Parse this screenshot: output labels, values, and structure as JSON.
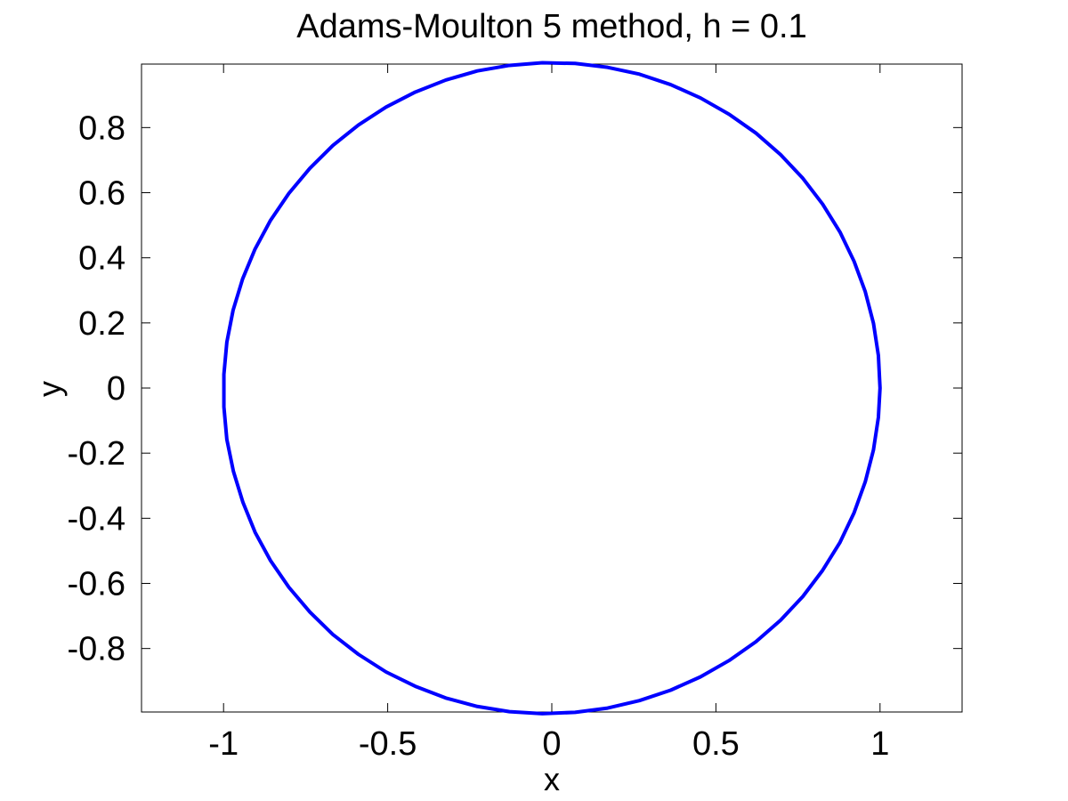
{
  "chart_data": {
    "type": "line",
    "title": "Adams-Moulton 5 method, h = 0.1",
    "xlabel": "x",
    "ylabel": "y",
    "xlim": [
      -1.25,
      1.25
    ],
    "ylim": [
      -0.995,
      0.995
    ],
    "grid": false,
    "x_ticks": [
      {
        "value": -1,
        "label": "-1"
      },
      {
        "value": -0.5,
        "label": "-0.5"
      },
      {
        "value": 0,
        "label": "0"
      },
      {
        "value": 0.5,
        "label": "0.5"
      },
      {
        "value": 1,
        "label": "1"
      }
    ],
    "y_ticks": [
      {
        "value": -0.8,
        "label": "-0.8"
      },
      {
        "value": -0.6,
        "label": "-0.6"
      },
      {
        "value": -0.4,
        "label": "-0.4"
      },
      {
        "value": -0.2,
        "label": "-0.2"
      },
      {
        "value": 0,
        "label": "0"
      },
      {
        "value": 0.2,
        "label": "0.2"
      },
      {
        "value": 0.4,
        "label": "0.4"
      },
      {
        "value": 0.6,
        "label": "0.6"
      },
      {
        "value": 0.8,
        "label": "0.8"
      }
    ],
    "series": [
      {
        "color": "#0000ff",
        "x": [
          1.0,
          0.995,
          0.98,
          0.955,
          0.921,
          0.878,
          0.825,
          0.765,
          0.697,
          0.622,
          0.54,
          0.453,
          0.362,
          0.267,
          0.17,
          0.071,
          -0.029,
          -0.129,
          -0.227,
          -0.323,
          -0.416,
          -0.505,
          -0.589,
          -0.667,
          -0.737,
          -0.801,
          -0.857,
          -0.904,
          -0.942,
          -0.971,
          -0.99,
          -0.999,
          -0.999,
          -0.99,
          -0.97,
          -0.941,
          -0.904,
          -0.857,
          -0.801,
          -0.737,
          -0.667,
          -0.589,
          -0.505,
          -0.416,
          -0.323,
          -0.227,
          -0.129,
          -0.029,
          0.071,
          0.17,
          0.267,
          0.362,
          0.453,
          0.54,
          0.622,
          0.697,
          0.765,
          0.825,
          0.878,
          0.921,
          0.955,
          0.98,
          0.995,
          1.0
        ],
        "y": [
          0.0,
          0.1,
          0.199,
          0.296,
          0.389,
          0.479,
          0.565,
          0.644,
          0.717,
          0.783,
          0.841,
          0.891,
          0.932,
          0.964,
          0.985,
          0.997,
          0.999,
          0.991,
          0.974,
          0.946,
          0.909,
          0.863,
          0.808,
          0.745,
          0.675,
          0.598,
          0.515,
          0.427,
          0.335,
          0.239,
          0.141,
          0.042,
          -0.058,
          -0.158,
          -0.256,
          -0.351,
          -0.443,
          -0.53,
          -0.612,
          -0.688,
          -0.757,
          -0.818,
          -0.872,
          -0.916,
          -0.952,
          -0.978,
          -0.994,
          -1.0,
          -0.996,
          -0.983,
          -0.96,
          -0.928,
          -0.887,
          -0.837,
          -0.779,
          -0.713,
          -0.64,
          -0.56,
          -0.474,
          -0.383,
          -0.288,
          -0.19,
          -0.09,
          0.0
        ]
      }
    ]
  }
}
